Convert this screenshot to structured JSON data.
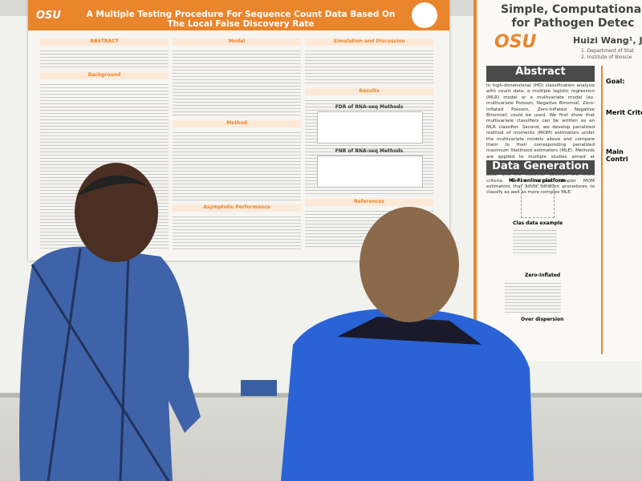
{
  "left_poster": {
    "title": "A Multiple Testing Procedure For Sequence Count Data Based On The Local False Discovery Rate",
    "logo": "OSU",
    "sections": [
      "ABSTRACT",
      "Background",
      "Model",
      "Method",
      "Asymptotic Performance",
      "Simulation and Discussion",
      "Results",
      "References"
    ],
    "plot_titles": [
      "FDR of RNA-seq Methods",
      "FNR of RNA-seq Methods"
    ]
  },
  "right_poster": {
    "title_lines": [
      "Simple, Computational",
      "for Pathogen Detec"
    ],
    "authors": "Huizi Wang¹, J",
    "affiliations": [
      "1. Department of Stat",
      "2. Institute of Bioscie"
    ],
    "logo": "OSU",
    "abstract_heading": "Abstract",
    "abstract": "In high-dimensional (HD) classification analysis with count data, a multiple logistic regression (MLR) model or a multivariate model (ex. multivariate Poisson, Negative Binomial, Zero-Inflated Poisson, Zero-Inflated Negative Binomial) could be used. We first show that multivariate classifiers can be written as an MLR classifier. Second, we develop penalized method of moments (MOM) estimators under the multivariate models above and compare them to their corresponding penalized maximum likelihood estimators (MLE). Methods are applied to multiple studies aimed at classifying a citrus sample as healthy or pathogenic using HD Microbe Finder (Mi-Fi) data, and the classifier satisfies the merit criteria. Results indicate simpler MOM estimators that avoid iteration procedures to classify as well as more complex MLE.",
    "data_heading": "Data Generation",
    "figure_labels": [
      "Mi-Fi online platform",
      "Clas data example",
      "Zero-Inflated",
      "Over dispersion"
    ],
    "side_headings": [
      "Goal:",
      "Merit Crite",
      "Main Contri"
    ]
  }
}
